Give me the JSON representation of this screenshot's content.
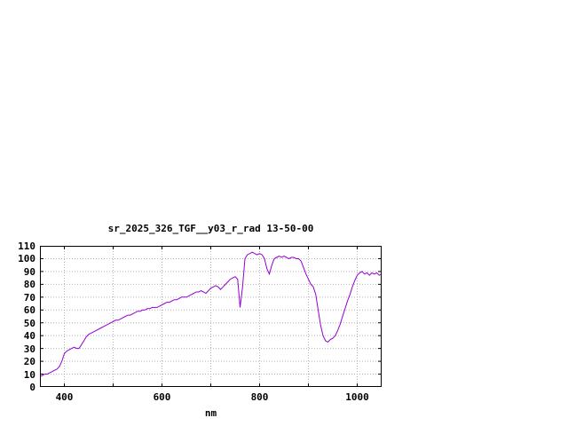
{
  "window": {
    "background": "#ffffff"
  },
  "chart_data": {
    "type": "line",
    "title": "sr_2025_326_TGF__y03_r_rad 13-50-00",
    "xlabel": "nm",
    "ylabel": "",
    "xlim": [
      350,
      1050
    ],
    "ylim": [
      0,
      110
    ],
    "xgrid": [
      400,
      500,
      600,
      700,
      800,
      900,
      1000
    ],
    "xtick_labels": [
      400,
      600,
      800,
      1000
    ],
    "yticks": [
      0,
      10,
      20,
      30,
      40,
      50,
      60,
      70,
      80,
      90,
      100,
      110
    ],
    "grid": true,
    "legend": "none",
    "line_color": "#9400d3",
    "x": [
      350,
      355,
      360,
      365,
      370,
      375,
      380,
      385,
      390,
      395,
      400,
      405,
      410,
      415,
      420,
      425,
      430,
      435,
      440,
      445,
      450,
      455,
      460,
      465,
      470,
      475,
      480,
      485,
      490,
      495,
      500,
      505,
      510,
      515,
      520,
      525,
      530,
      535,
      540,
      545,
      550,
      555,
      560,
      565,
      570,
      575,
      580,
      585,
      590,
      595,
      600,
      605,
      610,
      615,
      620,
      625,
      630,
      635,
      640,
      645,
      650,
      655,
      660,
      665,
      670,
      675,
      680,
      685,
      690,
      695,
      700,
      705,
      710,
      715,
      720,
      725,
      730,
      735,
      740,
      745,
      750,
      755,
      760,
      765,
      770,
      775,
      780,
      785,
      790,
      795,
      800,
      805,
      810,
      815,
      820,
      825,
      830,
      835,
      840,
      845,
      850,
      855,
      860,
      865,
      870,
      875,
      880,
      885,
      890,
      895,
      900,
      905,
      910,
      915,
      920,
      925,
      930,
      935,
      940,
      945,
      950,
      955,
      960,
      965,
      970,
      975,
      980,
      985,
      990,
      995,
      1000,
      1005,
      1010,
      1015,
      1020,
      1025,
      1030,
      1035,
      1040,
      1045,
      1050
    ],
    "y": [
      8,
      9,
      10,
      10,
      11,
      12,
      13,
      14,
      16,
      20,
      26,
      28,
      29,
      30,
      31,
      30,
      30,
      33,
      36,
      39,
      41,
      42,
      43,
      44,
      45,
      46,
      47,
      48,
      49,
      50,
      51,
      52,
      52,
      53,
      54,
      55,
      56,
      56,
      57,
      58,
      59,
      59,
      60,
      60,
      61,
      61,
      62,
      62,
      62,
      63,
      64,
      65,
      66,
      66,
      67,
      68,
      68,
      69,
      70,
      70,
      70,
      71,
      72,
      73,
      74,
      74,
      75,
      74,
      73,
      75,
      77,
      78,
      79,
      78,
      76,
      78,
      80,
      82,
      84,
      85,
      86,
      84,
      62,
      78,
      100,
      103,
      104,
      105,
      104,
      103,
      104,
      103,
      100,
      92,
      88,
      95,
      100,
      101,
      102,
      101,
      102,
      101,
      100,
      101,
      101,
      100,
      100,
      98,
      93,
      88,
      84,
      80,
      78,
      72,
      60,
      48,
      40,
      36,
      35,
      37,
      38,
      40,
      44,
      49,
      55,
      61,
      67,
      72,
      78,
      83,
      87,
      89,
      90,
      88,
      89,
      87,
      89,
      88,
      89,
      87,
      88
    ]
  }
}
